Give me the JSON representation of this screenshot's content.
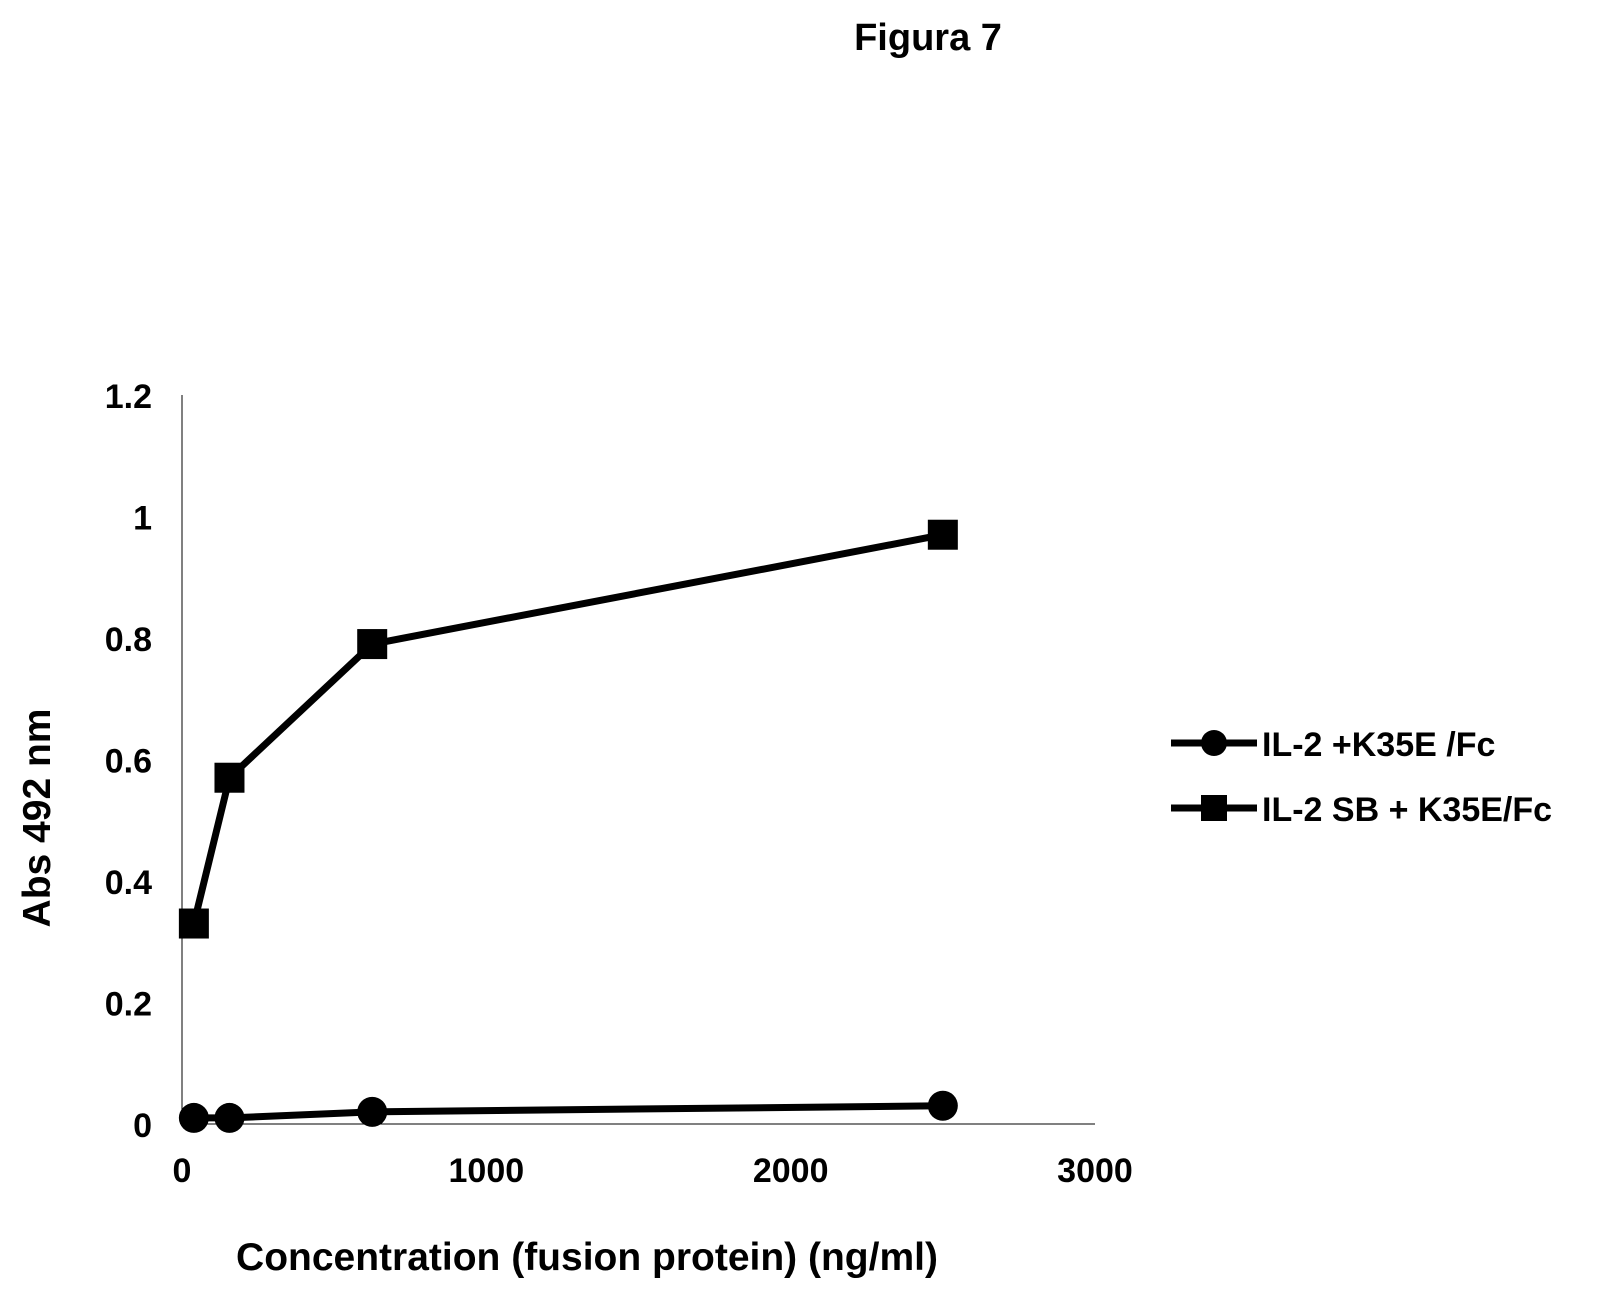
{
  "figure_label": "Figura 7",
  "chart_data": {
    "type": "line",
    "title": "",
    "xlabel": "Concentration (fusion protein) (ng/ml)",
    "ylabel": "Abs 492 nm",
    "xlim": [
      0,
      3000
    ],
    "ylim": [
      0,
      1.2
    ],
    "x_ticks": [
      0,
      1000,
      2000,
      3000
    ],
    "y_ticks": [
      0,
      0.2,
      0.4,
      0.6,
      0.8,
      1,
      1.2
    ],
    "grid": false,
    "legend_position": "right",
    "series": [
      {
        "name": "IL-2 +K35E /Fc",
        "marker": "circle",
        "color": "#000000",
        "x": [
          39,
          156,
          625,
          2500
        ],
        "y": [
          0.01,
          0.01,
          0.02,
          0.03
        ]
      },
      {
        "name": "IL-2 SB + K35E/Fc",
        "marker": "square",
        "color": "#000000",
        "x": [
          39,
          156,
          625,
          2500
        ],
        "y": [
          0.33,
          0.57,
          0.79,
          0.97
        ]
      }
    ]
  }
}
